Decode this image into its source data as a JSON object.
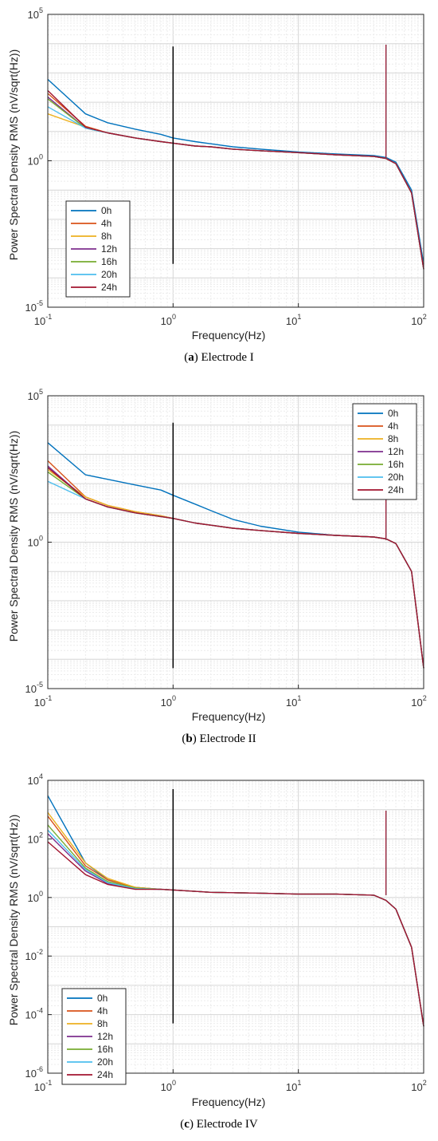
{
  "chart_data": [
    {
      "type": "line",
      "caption_letter": "a",
      "caption_text": "Electrode I",
      "xlabel": "Frequency(Hz)",
      "ylabel": "Power Spectral Density RMS (nV/sqrt(Hz))",
      "x_scale": "log",
      "y_scale": "log",
      "xlim": [
        0.1,
        100
      ],
      "ylim": [
        1e-05,
        100000
      ],
      "x_ticks": [
        "10^-1",
        "10^0",
        "10^1",
        "10^2"
      ],
      "y_ticks": [
        "10^-5",
        "10^0",
        "10^5"
      ],
      "grid": true,
      "legend_position": "bottom-left",
      "marker_line": {
        "x": 1,
        "y_range": [
          0.0003,
          8000
        ]
      },
      "series": [
        {
          "name": "0h",
          "color": "#0072BD",
          "x": [
            0.1,
            0.2,
            0.3,
            0.5,
            0.8,
            1,
            1.5,
            2,
            3,
            5,
            10,
            20,
            40,
            50,
            60,
            80,
            100
          ],
          "y": [
            600,
            40,
            20,
            12,
            8,
            6,
            4.5,
            3.8,
            3,
            2.5,
            2.0,
            1.7,
            1.5,
            1.3,
            0.9,
            0.1,
            0.0003
          ]
        },
        {
          "name": "4h",
          "color": "#D95319",
          "x": [
            0.1,
            0.2,
            0.3,
            0.5,
            0.8,
            1,
            1.5,
            2,
            3,
            5,
            10,
            20,
            40,
            50,
            60,
            80,
            100
          ],
          "y": [
            200,
            15,
            9,
            6,
            4.5,
            4,
            3.2,
            3,
            2.5,
            2.2,
            1.9,
            1.6,
            1.4,
            1.2,
            0.8,
            0.08,
            0.0002
          ]
        },
        {
          "name": "8h",
          "color": "#EDB120",
          "x": [
            0.1,
            0.2,
            0.3,
            0.5,
            0.8,
            1,
            1.5,
            2,
            3,
            5,
            10,
            20,
            40,
            50,
            60,
            80,
            100
          ],
          "y": [
            40,
            14,
            9,
            6,
            4.5,
            4,
            3.2,
            3,
            2.5,
            2.2,
            1.9,
            1.6,
            1.4,
            1.2,
            0.8,
            0.08,
            0.0002
          ]
        },
        {
          "name": "12h",
          "color": "#7E2F8E",
          "x": [
            0.1,
            0.2,
            0.3,
            0.5,
            0.8,
            1,
            1.5,
            2,
            3,
            5,
            10,
            20,
            40,
            50,
            60,
            80,
            100
          ],
          "y": [
            150,
            13,
            9,
            6,
            4.5,
            4,
            3.2,
            3,
            2.5,
            2.2,
            1.9,
            1.6,
            1.4,
            1.2,
            0.8,
            0.08,
            0.0002
          ]
        },
        {
          "name": "16h",
          "color": "#77AC30",
          "x": [
            0.1,
            0.2,
            0.3,
            0.5,
            0.8,
            1,
            1.5,
            2,
            3,
            5,
            10,
            20,
            40,
            50,
            60,
            80,
            100
          ],
          "y": [
            130,
            13,
            9,
            6,
            4.5,
            4,
            3.2,
            3,
            2.5,
            2.2,
            1.9,
            1.6,
            1.4,
            1.2,
            0.8,
            0.08,
            0.0002
          ]
        },
        {
          "name": "20h",
          "color": "#4DBEEE",
          "x": [
            0.1,
            0.2,
            0.3,
            0.5,
            0.8,
            1,
            1.5,
            2,
            3,
            5,
            10,
            20,
            40,
            50,
            60,
            80,
            100
          ],
          "y": [
            70,
            13,
            9,
            6,
            4.5,
            4,
            3.2,
            3,
            2.5,
            2.2,
            1.9,
            1.6,
            1.4,
            1.2,
            0.8,
            0.08,
            0.0002
          ]
        },
        {
          "name": "24h",
          "color": "#A2142F",
          "x": [
            0.1,
            0.2,
            0.3,
            0.5,
            0.8,
            1,
            1.5,
            2,
            3,
            5,
            10,
            20,
            40,
            50,
            60,
            80,
            100
          ],
          "y": [
            250,
            14,
            9,
            6,
            4.5,
            4,
            3.2,
            3,
            2.5,
            2.2,
            1.9,
            1.6,
            1.4,
            1.2,
            0.8,
            0.08,
            0.0002
          ]
        }
      ]
    },
    {
      "type": "line",
      "caption_letter": "b",
      "caption_text": "Electrode II",
      "xlabel": "Frequency(Hz)",
      "ylabel": "Power Spectral Density RMS (nV/sqrt(Hz))",
      "x_scale": "log",
      "y_scale": "log",
      "xlim": [
        0.1,
        100
      ],
      "ylim": [
        1e-05,
        100000
      ],
      "x_ticks": [
        "10^-1",
        "10^0",
        "10^1",
        "10^2"
      ],
      "y_ticks": [
        "10^-5",
        "10^0",
        "10^5"
      ],
      "grid": true,
      "legend_position": "top-right",
      "marker_line": {
        "x": 1,
        "y_range": [
          5e-05,
          12000
        ]
      },
      "series": [
        {
          "name": "0h",
          "color": "#0072BD",
          "x": [
            0.1,
            0.2,
            0.3,
            0.5,
            0.8,
            1,
            1.5,
            2,
            3,
            5,
            10,
            20,
            40,
            50,
            60,
            80,
            100
          ],
          "y": [
            2500,
            200,
            140,
            90,
            60,
            40,
            20,
            12,
            6,
            3.5,
            2.2,
            1.7,
            1.5,
            1.3,
            0.9,
            0.1,
            5e-05
          ]
        },
        {
          "name": "4h",
          "color": "#D95319",
          "x": [
            0.1,
            0.2,
            0.3,
            0.5,
            0.8,
            1,
            1.5,
            2,
            3,
            5,
            10,
            20,
            40,
            50,
            60,
            80,
            100
          ],
          "y": [
            600,
            35,
            18,
            11,
            8,
            6.5,
            4.5,
            3.8,
            3,
            2.5,
            2.0,
            1.7,
            1.5,
            1.3,
            0.9,
            0.1,
            5e-05
          ]
        },
        {
          "name": "8h",
          "color": "#EDB120",
          "x": [
            0.1,
            0.2,
            0.3,
            0.5,
            0.8,
            1,
            1.5,
            2,
            3,
            5,
            10,
            20,
            40,
            50,
            60,
            80,
            100
          ],
          "y": [
            300,
            35,
            18,
            11,
            8,
            6.5,
            4.5,
            3.8,
            3,
            2.5,
            2.0,
            1.7,
            1.5,
            1.3,
            0.9,
            0.1,
            5e-05
          ]
        },
        {
          "name": "12h",
          "color": "#7E2F8E",
          "x": [
            0.1,
            0.2,
            0.3,
            0.5,
            0.8,
            1,
            1.5,
            2,
            3,
            5,
            10,
            20,
            40,
            50,
            60,
            80,
            100
          ],
          "y": [
            400,
            30,
            16,
            10,
            7.5,
            6.5,
            4.5,
            3.8,
            3,
            2.5,
            2.0,
            1.7,
            1.5,
            1.3,
            0.9,
            0.1,
            5e-05
          ]
        },
        {
          "name": "16h",
          "color": "#77AC30",
          "x": [
            0.1,
            0.2,
            0.3,
            0.5,
            0.8,
            1,
            1.5,
            2,
            3,
            5,
            10,
            20,
            40,
            50,
            60,
            80,
            100
          ],
          "y": [
            250,
            30,
            16,
            10,
            7.5,
            6.5,
            4.5,
            3.8,
            3,
            2.5,
            2.0,
            1.7,
            1.5,
            1.3,
            0.9,
            0.1,
            5e-05
          ]
        },
        {
          "name": "20h",
          "color": "#4DBEEE",
          "x": [
            0.1,
            0.2,
            0.3,
            0.5,
            0.8,
            1,
            1.5,
            2,
            3,
            5,
            10,
            20,
            40,
            50,
            60,
            80,
            100
          ],
          "y": [
            120,
            30,
            16,
            10,
            7.5,
            6.5,
            4.5,
            3.8,
            3,
            2.5,
            2.0,
            1.7,
            1.5,
            1.3,
            0.9,
            0.1,
            5e-05
          ]
        },
        {
          "name": "24h",
          "color": "#A2142F",
          "x": [
            0.1,
            0.2,
            0.3,
            0.5,
            0.8,
            1,
            1.5,
            2,
            3,
            5,
            10,
            20,
            40,
            50,
            60,
            80,
            100
          ],
          "y": [
            350,
            30,
            16,
            10,
            7.5,
            6.5,
            4.5,
            3.8,
            3,
            2.5,
            2.0,
            1.7,
            1.5,
            1.3,
            0.9,
            0.1,
            5e-05
          ]
        }
      ]
    },
    {
      "type": "line",
      "caption_letter": "c",
      "caption_text": "Electrode IV",
      "xlabel": "Frequency(Hz)",
      "ylabel": "Power Spectral Density RMS (nV/sqrt(Hz))",
      "x_scale": "log",
      "y_scale": "log",
      "xlim": [
        0.1,
        100
      ],
      "ylim": [
        1e-06,
        10000
      ],
      "x_ticks": [
        "10^-1",
        "10^0",
        "10^1",
        "10^2"
      ],
      "y_ticks": [
        "10^-6",
        "10^-4",
        "10^-2",
        "10^0",
        "10^2",
        "10^4"
      ],
      "grid": true,
      "legend_position": "bottom-left",
      "marker_line": {
        "x": 1,
        "y_range": [
          5e-05,
          5000
        ]
      },
      "series": [
        {
          "name": "0h",
          "color": "#0072BD",
          "x": [
            0.1,
            0.2,
            0.3,
            0.5,
            0.8,
            1,
            2,
            5,
            10,
            20,
            40,
            50,
            60,
            80,
            100
          ],
          "y": [
            3000,
            15,
            4,
            2.2,
            1.9,
            1.8,
            1.5,
            1.4,
            1.3,
            1.3,
            1.2,
            0.8,
            0.4,
            0.02,
            4e-05
          ]
        },
        {
          "name": "4h",
          "color": "#D95319",
          "x": [
            0.1,
            0.2,
            0.3,
            0.5,
            0.8,
            1,
            2,
            5,
            10,
            20,
            40,
            50,
            60,
            80,
            100
          ],
          "y": [
            600,
            12,
            4,
            2.2,
            1.9,
            1.8,
            1.5,
            1.4,
            1.3,
            1.3,
            1.2,
            0.8,
            0.4,
            0.02,
            4e-05
          ]
        },
        {
          "name": "8h",
          "color": "#EDB120",
          "x": [
            0.1,
            0.2,
            0.3,
            0.5,
            0.8,
            1,
            2,
            5,
            10,
            20,
            40,
            50,
            60,
            80,
            100
          ],
          "y": [
            800,
            15,
            4.5,
            2.2,
            1.9,
            1.8,
            1.5,
            1.4,
            1.3,
            1.3,
            1.2,
            0.8,
            0.4,
            0.02,
            4e-05
          ]
        },
        {
          "name": "12h",
          "color": "#7E2F8E",
          "x": [
            0.1,
            0.2,
            0.3,
            0.5,
            0.8,
            1,
            2,
            5,
            10,
            20,
            40,
            50,
            60,
            80,
            100
          ],
          "y": [
            150,
            8,
            3,
            2.0,
            1.9,
            1.8,
            1.5,
            1.4,
            1.3,
            1.3,
            1.2,
            0.8,
            0.4,
            0.02,
            4e-05
          ]
        },
        {
          "name": "16h",
          "color": "#77AC30",
          "x": [
            0.1,
            0.2,
            0.3,
            0.5,
            0.8,
            1,
            2,
            5,
            10,
            20,
            40,
            50,
            60,
            80,
            100
          ],
          "y": [
            300,
            10,
            3.5,
            2.1,
            1.9,
            1.8,
            1.5,
            1.4,
            1.3,
            1.3,
            1.2,
            0.8,
            0.4,
            0.02,
            4e-05
          ]
        },
        {
          "name": "20h",
          "color": "#4DBEEE",
          "x": [
            0.1,
            0.2,
            0.3,
            0.5,
            0.8,
            1,
            2,
            5,
            10,
            20,
            40,
            50,
            60,
            80,
            100
          ],
          "y": [
            200,
            9,
            3.2,
            2.0,
            1.9,
            1.8,
            1.5,
            1.4,
            1.3,
            1.3,
            1.2,
            0.8,
            0.4,
            0.02,
            4e-05
          ]
        },
        {
          "name": "24h",
          "color": "#A2142F",
          "x": [
            0.1,
            0.2,
            0.3,
            0.5,
            0.8,
            1,
            2,
            5,
            10,
            20,
            40,
            50,
            60,
            80,
            100
          ],
          "y": [
            80,
            6,
            2.8,
            1.9,
            1.9,
            1.8,
            1.5,
            1.4,
            1.3,
            1.3,
            1.2,
            0.8,
            0.4,
            0.02,
            4e-05
          ]
        }
      ]
    }
  ]
}
